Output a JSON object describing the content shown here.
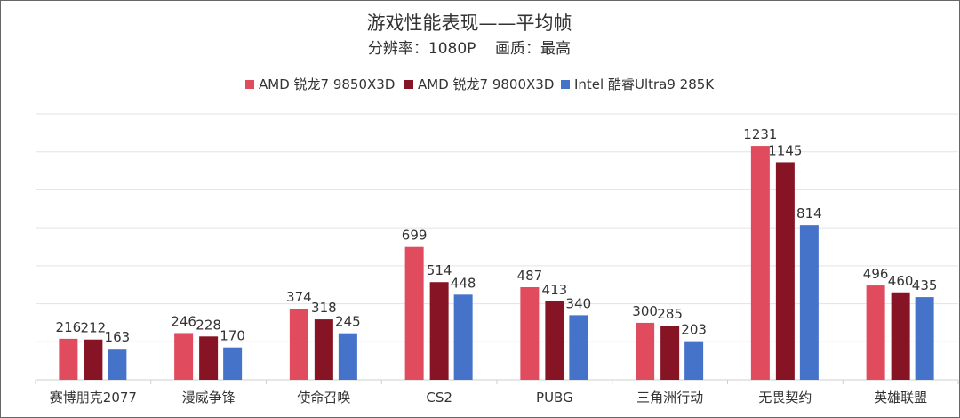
{
  "chart_data": {
    "type": "bar",
    "title": "游戏性能表现——平均帧",
    "subtitle": "分辨率：1080P    画质：最高",
    "xlabel": "",
    "ylabel": "",
    "ylim": [
      0,
      1400
    ],
    "ytick_step": 200,
    "grid": true,
    "legend_position": "top",
    "categories": [
      "赛博朋克2077",
      "漫威争锋",
      "使命召唤",
      "CS2",
      "PUBG",
      "三角洲行动",
      "无畏契约",
      "英雄联盟"
    ],
    "series": [
      {
        "name": "AMD 锐龙7 9850X3D",
        "color": "#E04B5E",
        "values": [
          216,
          246,
          374,
          699,
          487,
          300,
          1231,
          496
        ]
      },
      {
        "name": "AMD 锐龙7 9800X3D",
        "color": "#861424",
        "values": [
          212,
          228,
          318,
          514,
          413,
          285,
          1145,
          460
        ]
      },
      {
        "name": "Intel 酷睿Ultra9 285K",
        "color": "#4573C9",
        "values": [
          163,
          170,
          245,
          448,
          340,
          203,
          814,
          435
        ]
      }
    ]
  }
}
